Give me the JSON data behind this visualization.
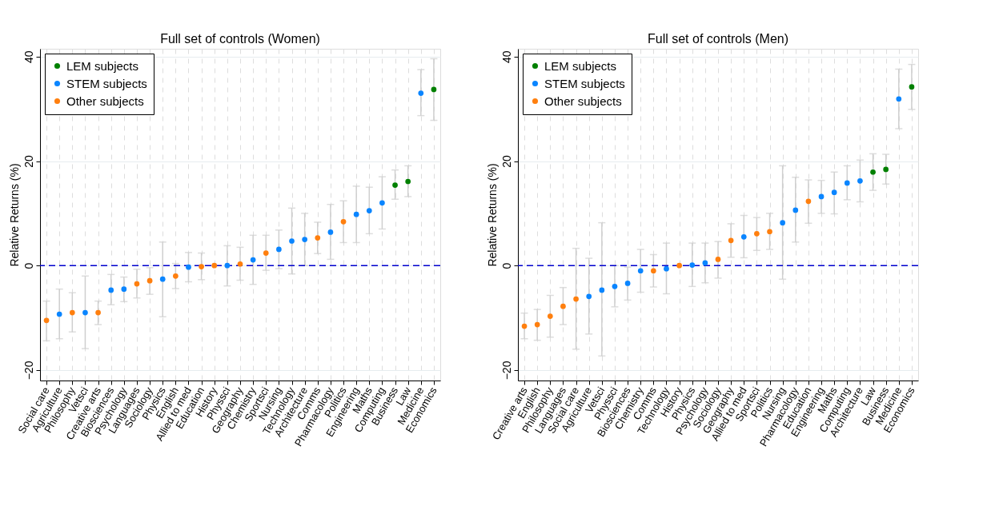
{
  "chart_data": [
    {
      "type": "scatter",
      "title": "Full set of controls (Women)",
      "ylabel": "Relative Returns (%)",
      "marker": "circle",
      "grid": true,
      "legend": "top left",
      "ylim": [
        -22,
        41.5
      ],
      "yticks": [
        -20,
        0,
        20,
        40
      ],
      "ref_lines": [
        {
          "axis": "y",
          "value": 0,
          "color": "#0000cd",
          "line_style": "dashed"
        }
      ],
      "categories": [
        "Social care",
        "Agriculture",
        "Philosophy",
        "Vetsci",
        "Creative arts",
        "Biosciences",
        "Psychology",
        "Languages",
        "Sociology",
        "Physics",
        "English",
        "Allied to med",
        "Education",
        "History",
        "Physsci",
        "Geography",
        "Chemistry",
        "Sportsci",
        "Nursing",
        "Technology",
        "Architecture",
        "Comms",
        "Pharmacology",
        "Politics",
        "Engineering",
        "Maths",
        "Computing",
        "Business",
        "Law",
        "Medicine",
        "Economics"
      ],
      "series": [
        {
          "name": "LEM subjects",
          "color": "#008000",
          "values": [
            null,
            null,
            null,
            null,
            null,
            null,
            null,
            null,
            null,
            null,
            null,
            null,
            null,
            null,
            null,
            null,
            null,
            null,
            null,
            null,
            null,
            null,
            null,
            null,
            null,
            null,
            null,
            15.4,
            16.1,
            null,
            33.7
          ],
          "errors": [
            null,
            null,
            null,
            null,
            null,
            null,
            null,
            null,
            null,
            null,
            null,
            null,
            null,
            null,
            null,
            null,
            null,
            null,
            null,
            null,
            null,
            null,
            null,
            null,
            null,
            null,
            null,
            [
              12.7,
              18.3
            ],
            [
              13.2,
              19.1
            ],
            null,
            [
              27.8,
              39.6
            ]
          ]
        },
        {
          "name": "STEM subjects",
          "color": "#0a85ff",
          "values": [
            null,
            -9.3,
            null,
            -9.0,
            null,
            -4.7,
            -4.5,
            null,
            null,
            -2.6,
            null,
            -0.3,
            null,
            null,
            0.0,
            null,
            1.1,
            null,
            3.1,
            4.7,
            5.0,
            null,
            6.4,
            null,
            9.8,
            10.5,
            12.0,
            null,
            null,
            33.0,
            null
          ],
          "errors": [
            null,
            [
              -14.0,
              -4.5
            ],
            null,
            [
              -15.9,
              -2.0
            ],
            null,
            [
              -7.5,
              -1.7
            ],
            [
              -6.9,
              -2.2
            ],
            null,
            null,
            [
              -9.8,
              4.5
            ],
            null,
            [
              -3.1,
              2.5
            ],
            null,
            null,
            [
              -3.9,
              3.8
            ],
            null,
            [
              -3.6,
              5.8
            ],
            null,
            [
              -0.6,
              6.8
            ],
            [
              -1.6,
              11.0
            ],
            [
              0.0,
              10.0
            ],
            null,
            [
              1.2,
              11.7
            ],
            null,
            [
              4.4,
              15.2
            ],
            [
              6.1,
              15.0
            ],
            [
              7.0,
              17.0
            ],
            null,
            null,
            [
              28.7,
              37.5
            ],
            null
          ]
        },
        {
          "name": "Other subjects",
          "color": "#ff7f0e",
          "values": [
            -10.5,
            null,
            -9.0,
            null,
            -9.0,
            null,
            null,
            -3.5,
            -2.9,
            null,
            -2.0,
            null,
            -0.2,
            0,
            null,
            0.3,
            null,
            2.4,
            null,
            null,
            null,
            5.3,
            null,
            8.4,
            null,
            null,
            null,
            null,
            null,
            null,
            null
          ],
          "errors": [
            [
              -14.4,
              -6.8
            ],
            null,
            [
              -12.7,
              -5.2
            ],
            null,
            [
              -11.3,
              -6.8
            ],
            null,
            null,
            [
              -6.2,
              -0.7
            ],
            [
              -5.5,
              -0.4
            ],
            null,
            [
              -4.4,
              0.4
            ],
            null,
            [
              -2.7,
              2.4
            ],
            null,
            null,
            [
              -2.8,
              3.5
            ],
            null,
            [
              -0.9,
              5.8
            ],
            null,
            null,
            null,
            [
              2.3,
              8.3
            ],
            null,
            [
              4.4,
              12.4
            ],
            null,
            null,
            null,
            null,
            null,
            null,
            null
          ]
        }
      ]
    },
    {
      "type": "scatter",
      "title": "Full set of controls (Men)",
      "ylabel": "Relative Returns (%)",
      "marker": "circle",
      "grid": true,
      "legend": "top left",
      "ylim": [
        -22,
        41.5
      ],
      "yticks": [
        -20,
        0,
        20,
        40
      ],
      "ref_lines": [
        {
          "axis": "y",
          "value": 0,
          "color": "#0000cd",
          "line_style": "dashed"
        }
      ],
      "categories": [
        "Creative arts",
        "English",
        "Philosophy",
        "Languages",
        "Social care",
        "Agriculture",
        "Vetsci",
        "Physsci",
        "Biosciences",
        "Chemistry",
        "Comms",
        "Technology",
        "History",
        "Physics",
        "Psychology",
        "Sociology",
        "Geography",
        "Allied to med",
        "Sportsci",
        "Politics",
        "Nursing",
        "Pharmacology",
        "Education",
        "Engineering",
        "Maths",
        "Computing",
        "Architecture",
        "Law",
        "Business",
        "Medicine",
        "Economics"
      ],
      "series": [
        {
          "name": "LEM subjects",
          "color": "#008000",
          "values": [
            null,
            null,
            null,
            null,
            null,
            null,
            null,
            null,
            null,
            null,
            null,
            null,
            null,
            null,
            null,
            null,
            null,
            null,
            null,
            null,
            null,
            null,
            null,
            null,
            null,
            null,
            null,
            17.9,
            18.4,
            null,
            34.2
          ],
          "errors": [
            null,
            null,
            null,
            null,
            null,
            null,
            null,
            null,
            null,
            null,
            null,
            null,
            null,
            null,
            null,
            null,
            null,
            null,
            null,
            null,
            null,
            null,
            null,
            null,
            null,
            null,
            null,
            [
              14.4,
              21.4
            ],
            [
              15.6,
              21.3
            ],
            null,
            [
              29.9,
              38.5
            ]
          ]
        },
        {
          "name": "STEM subjects",
          "color": "#0a85ff",
          "values": [
            null,
            null,
            null,
            null,
            null,
            -5.9,
            -4.7,
            -4.0,
            -3.4,
            -1.0,
            null,
            -0.6,
            null,
            0.1,
            0.5,
            null,
            null,
            5.5,
            null,
            null,
            8.2,
            10.6,
            null,
            13.2,
            14.0,
            15.8,
            16.2,
            null,
            null,
            31.9,
            null
          ],
          "errors": [
            null,
            null,
            null,
            null,
            null,
            [
              -13.1,
              1.4
            ],
            [
              -17.3,
              8.2
            ],
            [
              -7.9,
              0.0
            ],
            [
              -6.6,
              -0.3
            ],
            [
              -5.1,
              3.1
            ],
            null,
            [
              -5.4,
              4.3
            ],
            null,
            [
              -4.0,
              4.3
            ],
            [
              -3.3,
              4.3
            ],
            null,
            null,
            [
              1.5,
              9.6
            ],
            null,
            null,
            [
              -2.6,
              19.1
            ],
            [
              4.5,
              16.9
            ],
            null,
            [
              10.0,
              16.3
            ],
            [
              9.9,
              17.9
            ],
            [
              12.6,
              19.1
            ],
            [
              12.2,
              20.2
            ],
            null,
            null,
            [
              26.2,
              37.6
            ],
            null
          ]
        },
        {
          "name": "Other subjects",
          "color": "#ff7f0e",
          "values": [
            -11.6,
            -11.3,
            -9.7,
            -7.8,
            -6.4,
            null,
            null,
            null,
            null,
            null,
            -1.0,
            null,
            0,
            null,
            null,
            1.2,
            4.8,
            null,
            6.1,
            6.5,
            null,
            null,
            12.3,
            null,
            null,
            null,
            null,
            null,
            null,
            null,
            null
          ],
          "errors": [
            [
              -14.0,
              -9.1
            ],
            [
              -14.3,
              -8.4
            ],
            [
              -13.7,
              -5.7
            ],
            [
              -11.3,
              -4.2
            ],
            [
              -16.0,
              3.3
            ],
            null,
            null,
            null,
            null,
            null,
            [
              -4.1,
              2.1
            ],
            null,
            null,
            null,
            null,
            [
              -2.4,
              4.6
            ],
            [
              1.6,
              8.0
            ],
            null,
            [
              2.9,
              9.2
            ],
            [
              3.1,
              10.0
            ],
            null,
            null,
            [
              8.1,
              16.4
            ],
            null,
            null,
            null,
            null,
            null,
            null,
            null,
            null
          ]
        }
      ]
    }
  ]
}
